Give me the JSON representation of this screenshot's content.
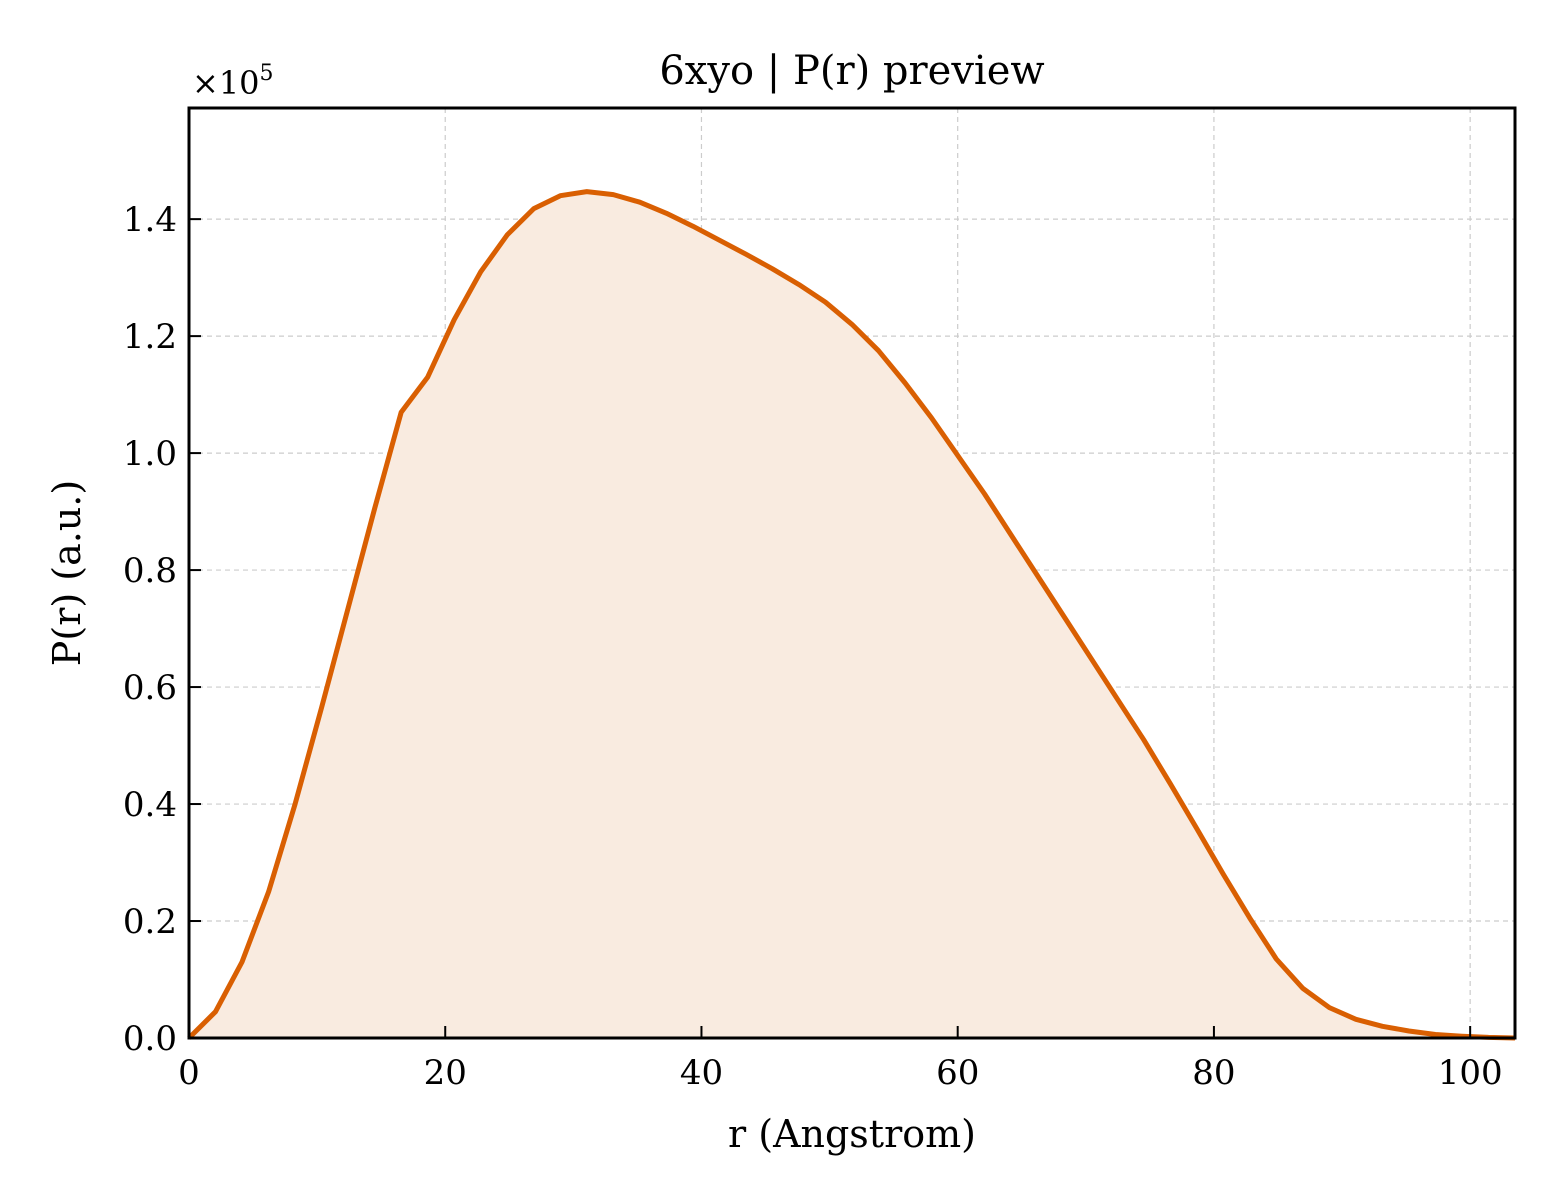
{
  "chart_data": {
    "type": "area",
    "title": "6xyo | P(r) preview",
    "xlabel": "r (Angstrom)",
    "ylabel": "P(r) (a.u.)",
    "y_offset_label": {
      "base": "×10",
      "exponent": "5"
    },
    "xlim": [
      0,
      103.5
    ],
    "ylim": [
      0,
      1.59
    ],
    "y_multiplier": 100000,
    "x_ticks": [
      0,
      20,
      40,
      60,
      80,
      100
    ],
    "x_tick_labels": [
      "0",
      "20",
      "40",
      "60",
      "80",
      "100"
    ],
    "y_ticks": [
      0,
      0.2,
      0.4,
      0.6,
      0.8,
      1.0,
      1.2,
      1.4
    ],
    "y_tick_labels": [
      "0.0",
      "0.2",
      "0.4",
      "0.6",
      "0.8",
      "1.0",
      "1.2",
      "1.4"
    ],
    "grid": true,
    "colors": {
      "line": "#d95f02",
      "fill": "#f9ebe0",
      "grid": "#cccccc"
    },
    "series": [
      {
        "x": [
          0,
          2.07,
          4.14,
          6.21,
          8.28,
          10.35,
          12.42,
          14.49,
          16.56,
          18.63,
          20.7,
          22.77,
          24.84,
          26.91,
          28.98,
          31.05,
          33.12,
          35.19,
          37.26,
          39.33,
          41.4,
          43.47,
          45.54,
          47.61,
          49.68,
          51.75,
          53.82,
          55.89,
          57.96,
          60.03,
          62.1,
          64.17,
          66.24,
          68.31,
          70.38,
          72.45,
          74.52,
          76.59,
          78.66,
          80.73,
          82.8,
          84.87,
          86.94,
          89.01,
          91.08,
          93.15,
          95.22,
          97.29,
          99.36,
          101.43,
          103.5
        ],
        "values": [
          0.0,
          0.045,
          0.13,
          0.25,
          0.4,
          0.565,
          0.735,
          0.905,
          1.07,
          1.13,
          1.228,
          1.31,
          1.373,
          1.418,
          1.44,
          1.447,
          1.442,
          1.429,
          1.41,
          1.388,
          1.364,
          1.34,
          1.315,
          1.288,
          1.258,
          1.22,
          1.175,
          1.12,
          1.06,
          0.995,
          0.93,
          0.86,
          0.79,
          0.72,
          0.65,
          0.58,
          0.51,
          0.435,
          0.358,
          0.28,
          0.205,
          0.135,
          0.085,
          0.052,
          0.032,
          0.02,
          0.012,
          0.006,
          0.003,
          0.001,
          0.0
        ]
      }
    ]
  }
}
